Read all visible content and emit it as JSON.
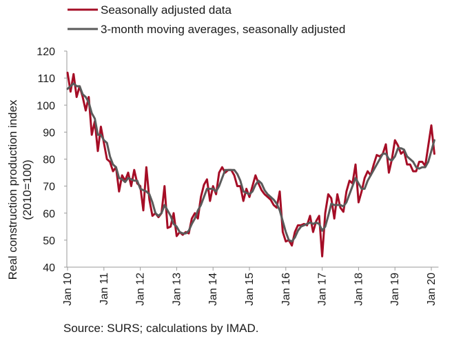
{
  "chart_data": {
    "type": "line",
    "ylabel_lines": [
      "Real construction production index",
      "(2010=100)"
    ],
    "ylim": [
      40,
      120
    ],
    "yticks": [
      40,
      50,
      60,
      70,
      80,
      90,
      100,
      110,
      120
    ],
    "grid": false,
    "legend_position": "top-left",
    "x_start": "2010-01",
    "x_tick_labels": [
      "Jan 10",
      "Jan 11",
      "Jan 12",
      "Jan 13",
      "Jan 14",
      "Jan 15",
      "Jan 16",
      "Jan 17",
      "Jan 18",
      "Jan 19",
      "Jan 20"
    ],
    "source": "Source: SURS; calculations by IMAD.",
    "series": [
      {
        "name": "Seasonally adjusted data",
        "color": "#a50d26",
        "values": [
          112,
          105,
          111.5,
          103,
          107,
          103,
          98,
          103,
          89,
          94,
          83,
          92,
          86,
          80,
          79,
          75.5,
          77,
          68,
          74,
          72,
          75,
          70,
          76,
          71,
          70,
          61,
          77,
          65,
          59,
          60,
          58.5,
          60,
          70,
          54.5,
          55,
          60,
          51.5,
          53,
          52,
          53,
          52.5,
          58,
          60,
          58,
          66,
          70.5,
          72.5,
          64.5,
          70,
          67,
          75,
          77,
          75,
          76,
          76,
          74,
          70,
          70,
          64.5,
          69,
          66,
          70,
          74,
          71,
          68.5,
          67,
          66,
          65,
          63,
          62,
          68,
          53,
          49.5,
          50,
          48,
          53,
          55.5,
          55.5,
          56,
          55.5,
          59,
          53,
          57,
          59,
          44,
          60,
          67,
          65.5,
          58,
          67,
          62,
          60.5,
          68,
          72,
          71,
          78,
          64,
          68,
          73,
          75.5,
          74,
          78,
          81.5,
          81,
          82,
          85.5,
          75,
          80,
          87,
          85,
          82,
          83,
          78,
          78,
          75.5,
          75.5,
          79,
          79,
          77.5,
          85,
          92.5,
          82
        ]
      },
      {
        "name": "3-month moving averages, seasonally adjusted",
        "color": "#5a5a5a",
        "values": [
          106,
          107,
          108,
          107,
          107,
          104,
          103,
          101,
          97,
          95,
          89,
          89,
          87,
          86,
          81,
          78,
          77,
          73,
          72.5,
          71.5,
          73,
          72.5,
          72,
          72,
          69,
          68.5,
          68,
          67,
          64,
          60,
          59,
          60,
          63,
          61,
          59,
          56,
          55,
          53,
          52.5,
          52.5,
          53.5,
          56,
          58,
          61,
          63,
          66,
          69,
          69,
          69,
          68,
          70,
          73,
          76,
          76,
          76,
          76,
          74.5,
          72,
          68,
          67.5,
          67,
          68,
          70.5,
          72,
          71,
          68.5,
          67,
          66,
          65,
          63.5,
          61,
          57,
          53,
          50,
          49.5,
          51,
          53.5,
          55,
          55.5,
          56,
          56.5,
          56,
          56.5,
          56,
          53.5,
          55,
          59,
          63.5,
          63,
          63,
          63,
          62.5,
          64,
          67,
          70,
          73,
          71,
          69,
          69,
          72,
          74,
          76,
          78,
          80,
          82,
          82,
          80,
          79.5,
          81,
          84,
          84,
          83.5,
          81,
          80,
          79,
          77,
          76.5,
          77,
          77,
          79,
          83,
          87
        ]
      }
    ]
  }
}
